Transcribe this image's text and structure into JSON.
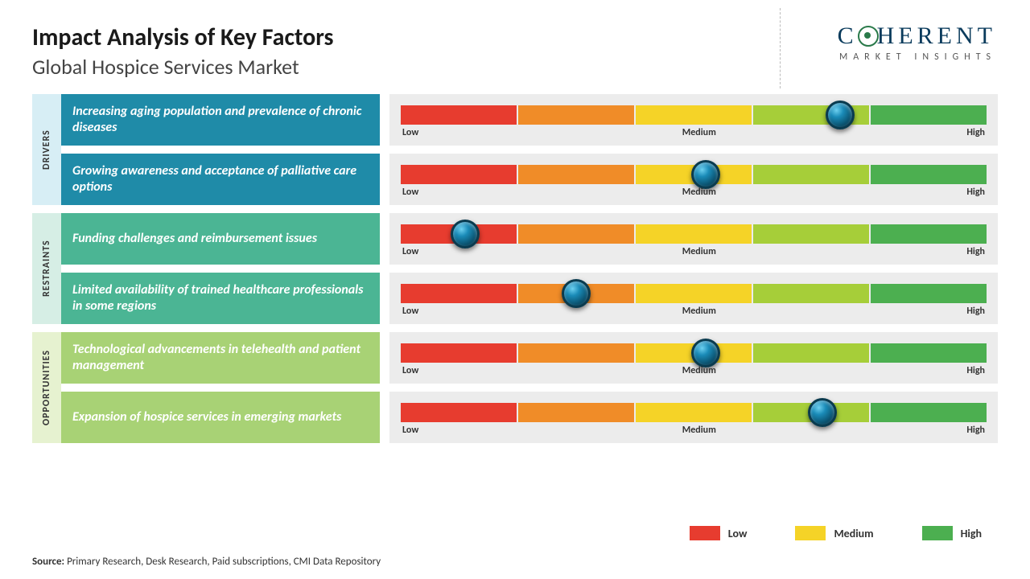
{
  "title": "Impact Analysis of Key Factors",
  "subtitle": "Global Hospice Services Market",
  "logo": {
    "brand": "COHERENT",
    "tagline": "MARKET INSIGHTS"
  },
  "gauge": {
    "segments": [
      "#e73c2f",
      "#f08c28",
      "#f5d327",
      "#a6ce39",
      "#4caf50"
    ],
    "labels": {
      "low": "Low",
      "medium": "Medium",
      "high": "High"
    },
    "track_bg": "#ececec"
  },
  "categories": [
    {
      "name": "DRIVERS",
      "label_bg": "#d7eef5",
      "factor_bg": "#1f8ba8",
      "factors": [
        {
          "text": "Increasing aging population and prevalence of chronic diseases",
          "marker_pct": 75
        },
        {
          "text": "Growing awareness and acceptance of palliative care options",
          "marker_pct": 52
        }
      ]
    },
    {
      "name": "RESTRAINTS",
      "label_bg": "#d6eee5",
      "factor_bg": "#4bb594",
      "factors": [
        {
          "text": "Funding challenges and reimbursement issues",
          "marker_pct": 11
        },
        {
          "text": "Limited availability of trained healthcare professionals in some regions",
          "marker_pct": 30
        }
      ]
    },
    {
      "name": "OPPORTUNITIES",
      "label_bg": "#e6f2d0",
      "factor_bg": "#a8d275",
      "factors": [
        {
          "text": "Technological advancements in telehealth and patient management",
          "marker_pct": 52
        },
        {
          "text": "Expansion of hospice services in emerging markets",
          "marker_pct": 72
        }
      ]
    }
  ],
  "legend": [
    {
      "label": "Low",
      "color": "#e73c2f"
    },
    {
      "label": "Medium",
      "color": "#f5d327"
    },
    {
      "label": "High",
      "color": "#4caf50"
    }
  ],
  "source": {
    "prefix": "Source:",
    "text": " Primary Research, Desk Research, Paid subscriptions, CMI Data Repository"
  }
}
